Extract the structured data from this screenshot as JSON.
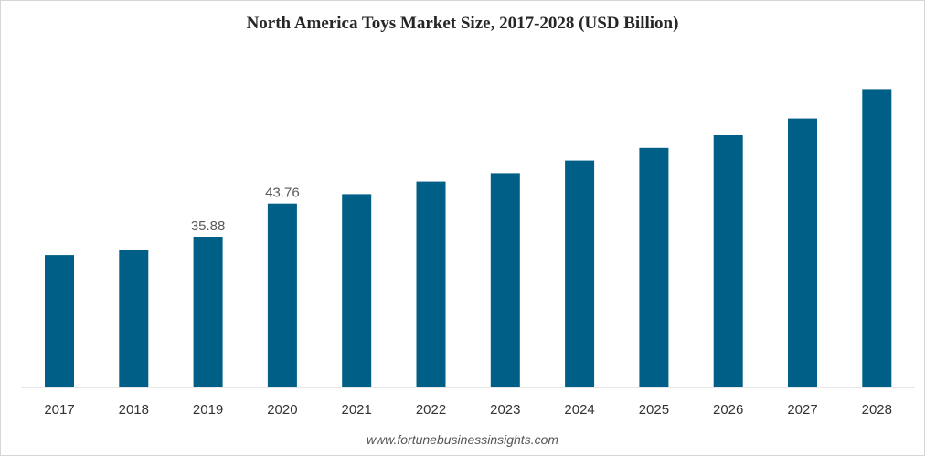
{
  "chart_data": {
    "type": "bar",
    "title": "North America Toys Market Size, 2017-2028 (USD Billion)",
    "xlabel": "",
    "ylabel": "",
    "categories": [
      "2017",
      "2018",
      "2019",
      "2020",
      "2021",
      "2022",
      "2023",
      "2024",
      "2025",
      "2026",
      "2027",
      "2028"
    ],
    "values": [
      31.5,
      32.6,
      35.88,
      43.76,
      46.0,
      49.0,
      51.0,
      54.0,
      57.0,
      60.0,
      64.0,
      71.0
    ],
    "data_labels": [
      null,
      null,
      "35.88",
      "43.76",
      null,
      null,
      null,
      null,
      null,
      null,
      null,
      null
    ],
    "ylim": [
      0,
      75
    ],
    "grid": false,
    "legend": "none",
    "bar_color": "#005f87"
  },
  "footer": {
    "source": "www.fortunebusinessinsights.com"
  },
  "colors": {
    "axis": "#cfcfcf",
    "tick_text": "#333333",
    "data_label_text": "#595959"
  }
}
